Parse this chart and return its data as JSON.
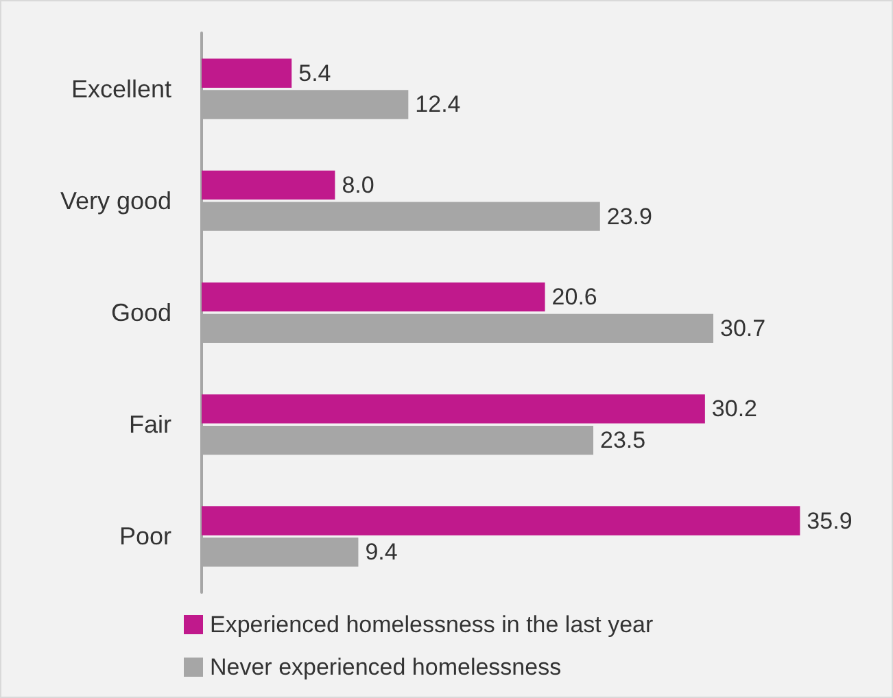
{
  "chart_data": {
    "type": "bar",
    "orientation": "horizontal",
    "categories": [
      "Excellent",
      "Very good",
      "Good",
      "Fair",
      "Poor"
    ],
    "series": [
      {
        "name": "Experienced homelessness in the last year",
        "color": "#c0198c",
        "values": [
          5.4,
          8.0,
          20.6,
          30.2,
          35.9
        ],
        "value_labels": [
          "5.4",
          "8.0",
          "20.6",
          "30.2",
          "35.9"
        ]
      },
      {
        "name": "Never experienced homelessness",
        "color": "#a6a6a6",
        "values": [
          12.4,
          23.9,
          30.7,
          23.5,
          9.4
        ],
        "value_labels": [
          "12.4",
          "23.9",
          "30.7",
          "23.5",
          "9.4"
        ]
      }
    ],
    "grid": false,
    "legend": "bottom"
  }
}
